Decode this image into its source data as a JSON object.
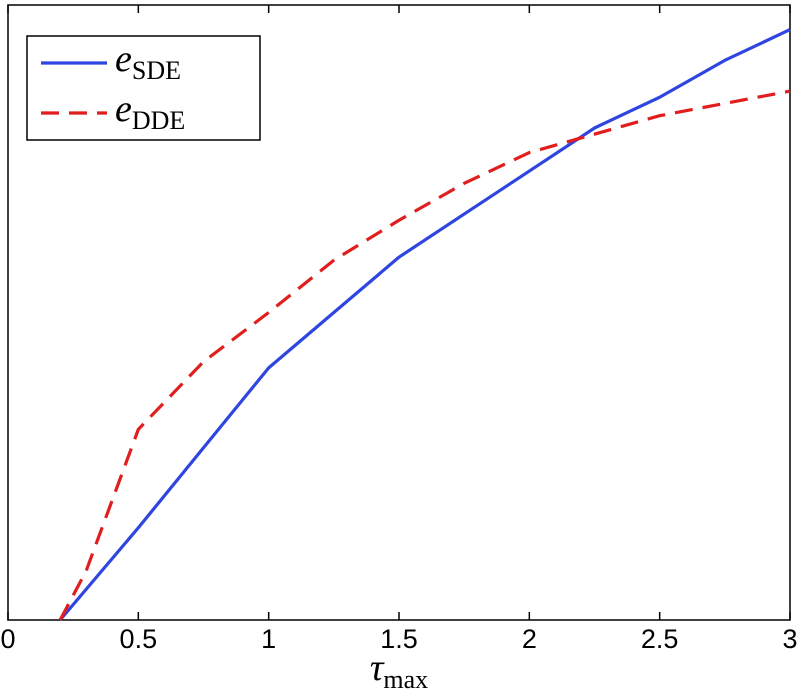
{
  "chart_data": {
    "type": "line",
    "x": [
      0.2,
      0.3,
      0.5,
      0.75,
      1,
      1.25,
      1.5,
      1.75,
      2,
      2.25,
      2.5,
      2.75,
      3
    ],
    "series": [
      {
        "name": "e",
        "subscript": "SDE",
        "color": "#2f45e0",
        "dash": false,
        "values": [
          0,
          0.05,
          0.15,
          0.28,
          0.41,
          0.5,
          0.59,
          0.66,
          0.73,
          0.8,
          0.85,
          0.91,
          0.96
        ]
      },
      {
        "name": "e",
        "subscript": "DDE",
        "color": "#e01e1e",
        "dash": true,
        "values": [
          0,
          0.08,
          0.31,
          0.42,
          0.5,
          0.585,
          0.65,
          0.71,
          0.76,
          0.79,
          0.82,
          0.84,
          0.86
        ]
      }
    ],
    "xlim": [
      0,
      3
    ],
    "ylim": [
      0,
      1
    ],
    "xticks": [
      0,
      0.5,
      1,
      1.5,
      2,
      2.5,
      3
    ],
    "xlabel": "τ",
    "xlabel_subscript": "max",
    "legend": "upper left"
  }
}
